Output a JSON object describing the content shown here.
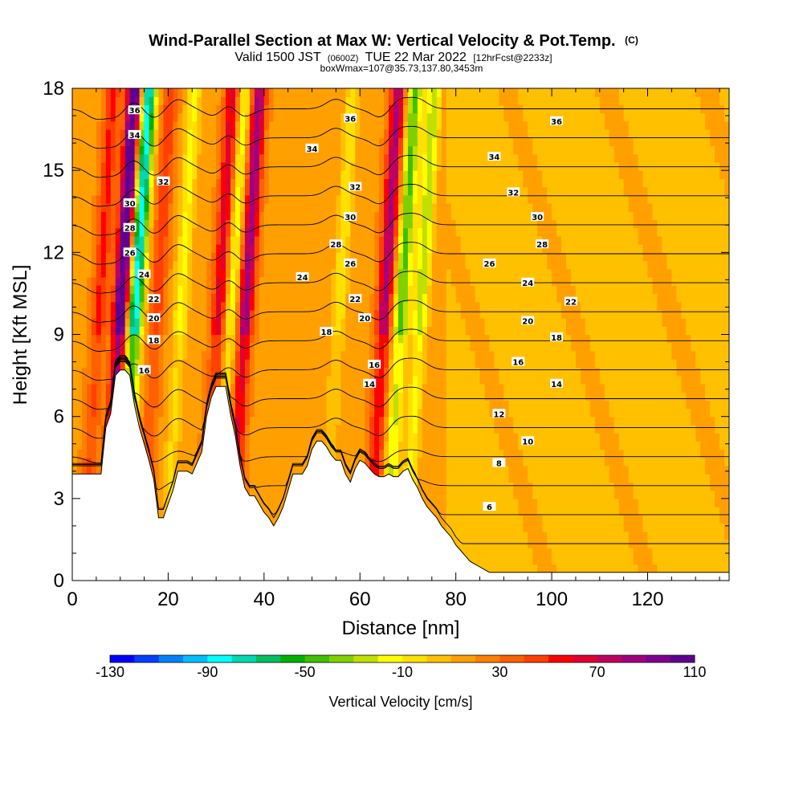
{
  "chart_data": {
    "type": "heatmap",
    "title": "Wind-Parallel Section at Max W: Vertical Velocity & Pot.Temp.",
    "title_mark": "(C)",
    "subtitle_parts": [
      "Valid 1500 JST",
      "(0600Z)",
      "TUE 22 Mar 2022",
      "[12hrFcst@2233z]"
    ],
    "subtitle2": "boxWmax=107@35.73,137.80,3453m",
    "xlabel": "Distance [nm]",
    "ylabel": "Height [Kft MSL]",
    "xlim": [
      0,
      137
    ],
    "ylim": [
      0,
      18
    ],
    "x_ticks": [
      0,
      20,
      40,
      60,
      80,
      100,
      120
    ],
    "y_ticks": [
      0,
      3,
      6,
      9,
      12,
      15,
      18
    ],
    "grid": false,
    "colorbar": {
      "label": "Vertical Velocity [cm/s]",
      "tick_labels": [
        "-130",
        "-90",
        "-50",
        "-10",
        "30",
        "70",
        "110"
      ],
      "range": [
        -130,
        110
      ],
      "step": 10,
      "colors": [
        "#0000ff",
        "#0040ff",
        "#0080ff",
        "#00bfff",
        "#00ffff",
        "#00d9b0",
        "#00c060",
        "#00b000",
        "#40c000",
        "#80d000",
        "#c0e000",
        "#ffff00",
        "#ffe000",
        "#ffc000",
        "#ffa000",
        "#ff8000",
        "#ff6000",
        "#ff4000",
        "#ff0000",
        "#e00030",
        "#c00060",
        "#a00080",
        "#800090",
        "#600090"
      ]
    },
    "background_w": 18,
    "updrafts": [
      {
        "x": 9.5,
        "w": 110
      },
      {
        "x": 35.5,
        "w": 75
      },
      {
        "x": 64.5,
        "w": 70
      },
      {
        "x": 30,
        "w": 55
      },
      {
        "x": 5,
        "w": 40
      },
      {
        "x": 17,
        "w": 35
      }
    ],
    "downdrafts": [
      {
        "x": 12.5,
        "w": -100
      },
      {
        "x": 72,
        "w": -40
      },
      {
        "x": 32.5,
        "w": -30
      },
      {
        "x": 68,
        "w": -55
      },
      {
        "x": 22,
        "w": -25
      },
      {
        "x": 55,
        "w": -20
      }
    ],
    "terrain": [
      [
        0,
        3.9
      ],
      [
        3,
        3.9
      ],
      [
        6,
        3.9
      ],
      [
        7,
        5.6
      ],
      [
        8,
        6.1
      ],
      [
        9,
        7.5
      ],
      [
        10,
        7.7
      ],
      [
        11,
        7.7
      ],
      [
        12,
        7.5
      ],
      [
        13,
        6.4
      ],
      [
        14,
        5.6
      ],
      [
        15,
        5.0
      ],
      [
        16,
        4.4
      ],
      [
        17,
        3.7
      ],
      [
        18,
        2.3
      ],
      [
        19,
        2.3
      ],
      [
        20,
        2.8
      ],
      [
        21,
        3.3
      ],
      [
        22,
        4.0
      ],
      [
        23,
        4.0
      ],
      [
        24,
        4.0
      ],
      [
        25,
        3.9
      ],
      [
        26,
        4.3
      ],
      [
        27,
        4.7
      ],
      [
        28,
        6.0
      ],
      [
        29,
        6.7
      ],
      [
        30,
        7.1
      ],
      [
        31,
        7.1
      ],
      [
        32,
        7.1
      ],
      [
        33,
        6.1
      ],
      [
        34,
        5.3
      ],
      [
        35,
        4.2
      ],
      [
        36,
        3.4
      ],
      [
        37,
        3.1
      ],
      [
        38,
        3.1
      ],
      [
        39,
        2.8
      ],
      [
        40,
        2.5
      ],
      [
        41,
        2.3
      ],
      [
        42,
        2.0
      ],
      [
        43,
        2.3
      ],
      [
        44,
        2.7
      ],
      [
        45,
        3.3
      ],
      [
        46,
        3.9
      ],
      [
        47,
        3.9
      ],
      [
        48,
        3.9
      ],
      [
        49,
        4.2
      ],
      [
        50,
        4.8
      ],
      [
        51,
        5.1
      ],
      [
        52,
        5.1
      ],
      [
        53,
        4.9
      ],
      [
        54,
        4.6
      ],
      [
        55,
        4.4
      ],
      [
        56,
        4.4
      ],
      [
        57,
        3.9
      ],
      [
        58,
        3.6
      ],
      [
        59,
        4.1
      ],
      [
        60,
        4.4
      ],
      [
        61,
        4.3
      ],
      [
        62,
        4.1
      ],
      [
        63,
        3.9
      ],
      [
        64,
        3.8
      ],
      [
        65,
        3.8
      ],
      [
        66,
        3.9
      ],
      [
        67,
        3.8
      ],
      [
        68,
        3.8
      ],
      [
        69,
        4.0
      ],
      [
        70,
        4.1
      ],
      [
        71,
        3.7
      ],
      [
        72,
        3.4
      ],
      [
        73,
        3.0
      ],
      [
        74,
        2.7
      ],
      [
        75,
        2.5
      ],
      [
        76,
        2.3
      ],
      [
        77,
        2.0
      ],
      [
        78,
        1.8
      ],
      [
        79,
        1.6
      ],
      [
        80,
        1.3
      ],
      [
        81,
        1.1
      ],
      [
        82,
        0.9
      ],
      [
        83,
        0.7
      ],
      [
        84,
        0.6
      ],
      [
        85,
        0.5
      ],
      [
        86,
        0.4
      ],
      [
        87,
        0.3
      ],
      [
        137,
        0.3
      ]
    ],
    "theta_levels": [
      6,
      8,
      10,
      12,
      14,
      16,
      18,
      20,
      22,
      24,
      26,
      28,
      30,
      32,
      34,
      36
    ],
    "theta_label_unit": "",
    "contour_labels": [
      {
        "x": 13,
        "y": 17.2,
        "t": "36"
      },
      {
        "x": 13,
        "y": 16.3,
        "t": "34"
      },
      {
        "x": 19,
        "y": 14.6,
        "t": "32"
      },
      {
        "x": 12,
        "y": 13.8,
        "t": "30"
      },
      {
        "x": 12,
        "y": 12.9,
        "t": "28"
      },
      {
        "x": 12,
        "y": 12.0,
        "t": "26"
      },
      {
        "x": 15,
        "y": 11.2,
        "t": "24"
      },
      {
        "x": 17,
        "y": 10.3,
        "t": "22"
      },
      {
        "x": 17,
        "y": 9.6,
        "t": "20"
      },
      {
        "x": 17,
        "y": 8.8,
        "t": "18"
      },
      {
        "x": 15,
        "y": 7.7,
        "t": "16"
      },
      {
        "x": 58,
        "y": 16.9,
        "t": "36"
      },
      {
        "x": 50,
        "y": 15.8,
        "t": "34"
      },
      {
        "x": 59,
        "y": 14.4,
        "t": "32"
      },
      {
        "x": 58,
        "y": 13.3,
        "t": "30"
      },
      {
        "x": 55,
        "y": 12.3,
        "t": "28"
      },
      {
        "x": 58,
        "y": 11.6,
        "t": "26"
      },
      {
        "x": 48,
        "y": 11.1,
        "t": "24"
      },
      {
        "x": 59,
        "y": 10.3,
        "t": "22"
      },
      {
        "x": 61,
        "y": 9.6,
        "t": "20"
      },
      {
        "x": 53,
        "y": 9.1,
        "t": "18"
      },
      {
        "x": 63,
        "y": 7.9,
        "t": "16"
      },
      {
        "x": 62,
        "y": 7.2,
        "t": "14"
      },
      {
        "x": 101,
        "y": 16.8,
        "t": "36"
      },
      {
        "x": 88,
        "y": 15.5,
        "t": "34"
      },
      {
        "x": 92,
        "y": 14.2,
        "t": "32"
      },
      {
        "x": 97,
        "y": 13.3,
        "t": "30"
      },
      {
        "x": 98,
        "y": 12.3,
        "t": "28"
      },
      {
        "x": 87,
        "y": 11.6,
        "t": "26"
      },
      {
        "x": 95,
        "y": 10.9,
        "t": "24"
      },
      {
        "x": 104,
        "y": 10.2,
        "t": "22"
      },
      {
        "x": 95,
        "y": 9.5,
        "t": "20"
      },
      {
        "x": 101,
        "y": 8.9,
        "t": "18"
      },
      {
        "x": 93,
        "y": 8.0,
        "t": "16"
      },
      {
        "x": 101,
        "y": 7.2,
        "t": "14"
      },
      {
        "x": 89,
        "y": 6.1,
        "t": "12"
      },
      {
        "x": 95,
        "y": 5.1,
        "t": "10"
      },
      {
        "x": 89,
        "y": 4.3,
        "t": "8"
      },
      {
        "x": 87,
        "y": 2.7,
        "t": "6"
      }
    ]
  }
}
